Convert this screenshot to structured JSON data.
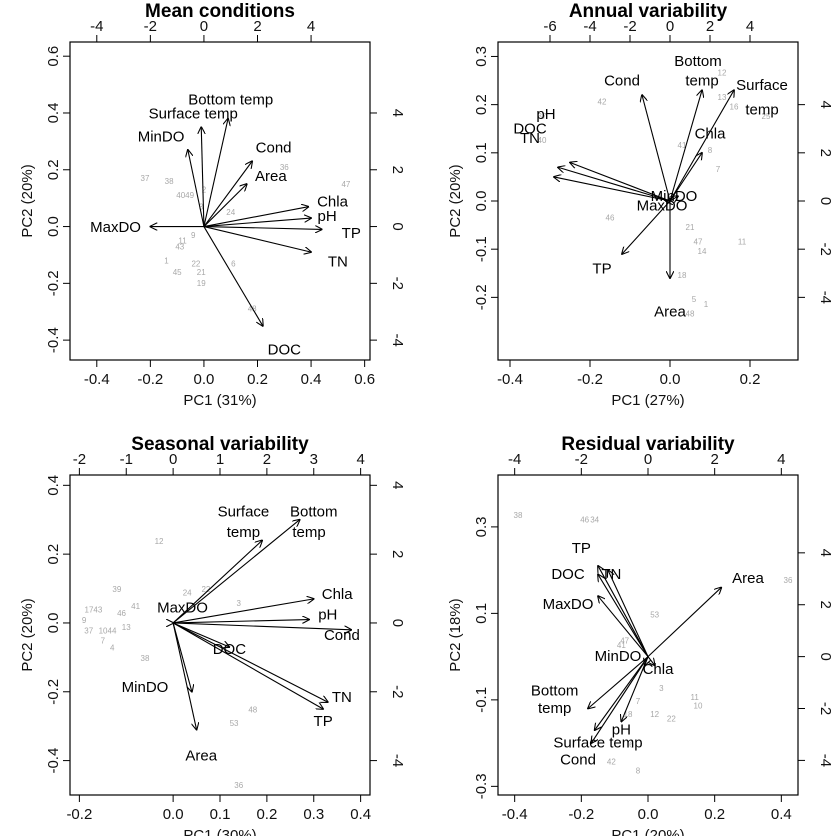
{
  "chart_data": [
    {
      "type": "biplot",
      "title": "Mean conditions",
      "xlabel": "PC1 (31%)",
      "ylabel": "PC2 (20%)",
      "xlim": [
        -0.5,
        0.62
      ],
      "ylim": [
        -0.47,
        0.65
      ],
      "xticks": [
        "-0.4",
        "-0.2",
        "0.0",
        "0.2",
        "0.4",
        "0.6"
      ],
      "xtick_values": [
        -0.4,
        -0.2,
        0.0,
        0.2,
        0.4,
        0.6
      ],
      "yticks": [
        "-0.4",
        "-0.2",
        "0.0",
        "0.2",
        "0.4",
        "0.6"
      ],
      "ytick_values": [
        -0.4,
        -0.2,
        0.0,
        0.2,
        0.4,
        0.6
      ],
      "top_ticks": [
        "-4",
        "-2",
        "0",
        "2",
        "4"
      ],
      "top_tick_values": [
        -0.4,
        -0.2,
        0.0,
        0.2,
        0.4
      ],
      "right_ticks": [
        "-4",
        "-2",
        "0",
        "2",
        "4"
      ],
      "right_tick_values": [
        -0.4,
        -0.2,
        0.0,
        0.2,
        0.4
      ],
      "vectors": [
        {
          "name": "Bottom temp",
          "x": 0.09,
          "y": 0.38,
          "lx": 0.1,
          "ly": 0.43
        },
        {
          "name": "Surface temp",
          "x": -0.01,
          "y": 0.35,
          "lx": -0.04,
          "ly": 0.38
        },
        {
          "name": "MinDO",
          "x": -0.06,
          "y": 0.27,
          "lx": -0.16,
          "ly": 0.3
        },
        {
          "name": "Cond",
          "x": 0.18,
          "y": 0.23,
          "lx": 0.26,
          "ly": 0.26
        },
        {
          "name": "Area",
          "x": 0.16,
          "y": 0.15,
          "lx": 0.25,
          "ly": 0.16
        },
        {
          "name": "Chla",
          "x": 0.39,
          "y": 0.07,
          "lx": 0.48,
          "ly": 0.07
        },
        {
          "name": "pH",
          "x": 0.4,
          "y": 0.03,
          "lx": 0.46,
          "ly": 0.02
        },
        {
          "name": "TP",
          "x": 0.44,
          "y": -0.01,
          "lx": 0.55,
          "ly": -0.04
        },
        {
          "name": "TN",
          "x": 0.4,
          "y": -0.09,
          "lx": 0.5,
          "ly": -0.14
        },
        {
          "name": "MaxDO",
          "x": -0.2,
          "y": 0.0,
          "lx": -0.33,
          "ly": -0.02
        },
        {
          "name": "DOC",
          "x": 0.22,
          "y": -0.35,
          "lx": 0.3,
          "ly": -0.45
        }
      ],
      "observations": [
        {
          "label": "37",
          "x": -0.22,
          "y": 0.16
        },
        {
          "label": "38",
          "x": -0.13,
          "y": 0.15
        },
        {
          "label": "4049",
          "x": -0.07,
          "y": 0.1
        },
        {
          "label": "2",
          "x": 0.0,
          "y": 0.12
        },
        {
          "label": "3",
          "x": -0.01,
          "y": 0.06
        },
        {
          "label": "36",
          "x": 0.3,
          "y": 0.2
        },
        {
          "label": "47",
          "x": 0.53,
          "y": 0.14
        },
        {
          "label": "24",
          "x": 0.1,
          "y": 0.04
        },
        {
          "label": "9",
          "x": -0.04,
          "y": -0.04
        },
        {
          "label": "11",
          "x": -0.08,
          "y": -0.06
        },
        {
          "label": "43",
          "x": -0.09,
          "y": -0.08
        },
        {
          "label": "1",
          "x": -0.14,
          "y": -0.13
        },
        {
          "label": "45",
          "x": -0.1,
          "y": -0.17
        },
        {
          "label": "22",
          "x": -0.03,
          "y": -0.14
        },
        {
          "label": "21",
          "x": -0.01,
          "y": -0.17
        },
        {
          "label": "19",
          "x": -0.01,
          "y": -0.21
        },
        {
          "label": "6",
          "x": 0.11,
          "y": -0.14
        },
        {
          "label": "48",
          "x": 0.18,
          "y": -0.3
        }
      ]
    },
    {
      "type": "biplot",
      "title": "Annual variability",
      "xlabel": "PC1 (27%)",
      "ylabel": "PC2 (20%)",
      "xlim": [
        -0.43,
        0.32
      ],
      "ylim": [
        -0.33,
        0.33
      ],
      "xticks": [
        "-0.4",
        "-0.2",
        "0.0",
        "0.2"
      ],
      "xtick_values": [
        -0.4,
        -0.2,
        0.0,
        0.2
      ],
      "yticks": [
        "-0.2",
        "-0.1",
        "0.0",
        "0.1",
        "0.2",
        "0.3"
      ],
      "ytick_values": [
        -0.2,
        -0.1,
        0.0,
        0.1,
        0.2,
        0.3
      ],
      "top_ticks": [
        "-6",
        "-4",
        "-2",
        "0",
        "2",
        "4"
      ],
      "top_tick_values": [
        -0.3,
        -0.2,
        -0.1,
        0.0,
        0.1,
        0.2
      ],
      "right_ticks": [
        "-4",
        "-2",
        "0",
        "2",
        "4"
      ],
      "right_tick_values": [
        -0.2,
        -0.1,
        0.0,
        0.1,
        0.2
      ],
      "vectors": [
        {
          "name": "Cond",
          "x": -0.07,
          "y": 0.22,
          "lx": -0.12,
          "ly": 0.24
        },
        {
          "name": "Bottom",
          "x": 0.08,
          "y": 0.23,
          "lx": 0.07,
          "ly": 0.28
        },
        {
          "name": "temp",
          "x": null,
          "y": null,
          "lx": 0.08,
          "ly": 0.24
        },
        {
          "name": "Surface",
          "x": 0.16,
          "y": 0.23,
          "lx": 0.23,
          "ly": 0.23
        },
        {
          "name": "temp",
          "x": null,
          "y": null,
          "lx": 0.23,
          "ly": 0.18
        },
        {
          "name": "Chla",
          "x": 0.08,
          "y": 0.1,
          "lx": 0.1,
          "ly": 0.13
        },
        {
          "name": "pH",
          "x": -0.25,
          "y": 0.08,
          "lx": -0.31,
          "ly": 0.17
        },
        {
          "name": "DOC",
          "x": -0.28,
          "y": 0.07,
          "lx": -0.35,
          "ly": 0.14
        },
        {
          "name": "TN",
          "x": -0.29,
          "y": 0.05,
          "lx": -0.35,
          "ly": 0.12
        },
        {
          "name": "MinDO",
          "x": 0.02,
          "y": 0.01,
          "lx": 0.01,
          "ly": 0.0
        },
        {
          "name": "MaxDO",
          "x": -0.01,
          "y": 0.0,
          "lx": -0.02,
          "ly": -0.02
        },
        {
          "name": "TP",
          "x": -0.12,
          "y": -0.11,
          "lx": -0.17,
          "ly": -0.15
        },
        {
          "name": "Area",
          "x": 0.0,
          "y": -0.16,
          "lx": 0.0,
          "ly": -0.24
        }
      ],
      "observations": [
        {
          "label": "37",
          "x": -0.32,
          "y": 0.17
        },
        {
          "label": "40",
          "x": -0.32,
          "y": 0.12
        },
        {
          "label": "42",
          "x": -0.17,
          "y": 0.2
        },
        {
          "label": "12",
          "x": 0.13,
          "y": 0.26
        },
        {
          "label": "13",
          "x": 0.13,
          "y": 0.21
        },
        {
          "label": "16",
          "x": 0.16,
          "y": 0.19
        },
        {
          "label": "25",
          "x": 0.24,
          "y": 0.17
        },
        {
          "label": "41",
          "x": 0.03,
          "y": 0.11
        },
        {
          "label": "8",
          "x": 0.1,
          "y": 0.1
        },
        {
          "label": "7",
          "x": 0.12,
          "y": 0.06
        },
        {
          "label": "46",
          "x": -0.15,
          "y": -0.04
        },
        {
          "label": "21",
          "x": 0.05,
          "y": -0.06
        },
        {
          "label": "47",
          "x": 0.07,
          "y": -0.09
        },
        {
          "label": "14",
          "x": 0.08,
          "y": -0.11
        },
        {
          "label": "11",
          "x": 0.18,
          "y": -0.09
        },
        {
          "label": "18",
          "x": 0.03,
          "y": -0.16
        },
        {
          "label": "5",
          "x": 0.06,
          "y": -0.21
        },
        {
          "label": "48",
          "x": 0.05,
          "y": -0.24
        },
        {
          "label": "1",
          "x": 0.09,
          "y": -0.22
        }
      ]
    },
    {
      "type": "biplot",
      "title": "Seasonal variability",
      "xlabel": "PC1 (30%)",
      "ylabel": "PC2 (20%)",
      "xlim": [
        -0.22,
        0.42
      ],
      "ylim": [
        -0.5,
        0.43
      ],
      "xticks": [
        "-0.2",
        "0.0",
        "0.1",
        "0.2",
        "0.3",
        "0.4"
      ],
      "xtick_values": [
        -0.2,
        0.0,
        0.1,
        0.2,
        0.3,
        0.4
      ],
      "yticks": [
        "-0.4",
        "-0.2",
        "0.0",
        "0.2",
        "0.4"
      ],
      "ytick_values": [
        -0.4,
        -0.2,
        0.0,
        0.2,
        0.4
      ],
      "top_ticks": [
        "-2",
        "-1",
        "0",
        "1",
        "2",
        "3",
        "4"
      ],
      "top_tick_values": [
        -0.2,
        -0.1,
        0.0,
        0.1,
        0.2,
        0.3,
        0.4
      ],
      "right_ticks": [
        "-4",
        "-2",
        "0",
        "2",
        "4"
      ],
      "right_tick_values": [
        -0.4,
        -0.2,
        0.0,
        0.2,
        0.4
      ],
      "vectors": [
        {
          "name": "Surface",
          "x": 0.19,
          "y": 0.24,
          "lx": 0.15,
          "ly": 0.31
        },
        {
          "name": "temp",
          "x": null,
          "y": null,
          "lx": 0.15,
          "ly": 0.25
        },
        {
          "name": "Bottom",
          "x": 0.27,
          "y": 0.3,
          "lx": 0.3,
          "ly": 0.31
        },
        {
          "name": "temp",
          "x": null,
          "y": null,
          "lx": 0.29,
          "ly": 0.25
        },
        {
          "name": "Chla",
          "x": 0.3,
          "y": 0.07,
          "lx": 0.35,
          "ly": 0.07
        },
        {
          "name": "pH",
          "x": 0.29,
          "y": 0.01,
          "lx": 0.33,
          "ly": 0.01
        },
        {
          "name": "Cond",
          "x": 0.38,
          "y": -0.02,
          "lx": 0.36,
          "ly": -0.05
        },
        {
          "name": "MaxDO",
          "x": 0.0,
          "y": 0.0,
          "lx": 0.02,
          "ly": 0.03
        },
        {
          "name": "DOC",
          "x": 0.12,
          "y": -0.07,
          "lx": 0.12,
          "ly": -0.09
        },
        {
          "name": "TN",
          "x": 0.33,
          "y": -0.23,
          "lx": 0.36,
          "ly": -0.23
        },
        {
          "name": "TP",
          "x": 0.32,
          "y": -0.25,
          "lx": 0.32,
          "ly": -0.3
        },
        {
          "name": "MinDO",
          "x": 0.04,
          "y": -0.2,
          "lx": -0.06,
          "ly": -0.2
        },
        {
          "name": "Area",
          "x": 0.05,
          "y": -0.31,
          "lx": 0.06,
          "ly": -0.4
        }
      ],
      "observations": [
        {
          "label": "12",
          "x": -0.03,
          "y": 0.23
        },
        {
          "label": "39",
          "x": -0.12,
          "y": 0.09
        },
        {
          "label": "24",
          "x": 0.03,
          "y": 0.08
        },
        {
          "label": "22",
          "x": 0.07,
          "y": 0.09
        },
        {
          "label": "3",
          "x": 0.14,
          "y": 0.05
        },
        {
          "label": "1743",
          "x": -0.17,
          "y": 0.03
        },
        {
          "label": "46",
          "x": -0.11,
          "y": 0.02
        },
        {
          "label": "41",
          "x": -0.08,
          "y": 0.04
        },
        {
          "label": "9",
          "x": -0.19,
          "y": 0.0
        },
        {
          "label": "37",
          "x": -0.18,
          "y": -0.03
        },
        {
          "label": "1044",
          "x": -0.14,
          "y": -0.03
        },
        {
          "label": "13",
          "x": -0.1,
          "y": -0.02
        },
        {
          "label": "7",
          "x": -0.15,
          "y": -0.06
        },
        {
          "label": "4",
          "x": -0.13,
          "y": -0.08
        },
        {
          "label": "38",
          "x": -0.06,
          "y": -0.11
        },
        {
          "label": "48",
          "x": 0.17,
          "y": -0.26
        },
        {
          "label": "53",
          "x": 0.13,
          "y": -0.3
        },
        {
          "label": "36",
          "x": 0.14,
          "y": -0.48
        }
      ]
    },
    {
      "type": "biplot",
      "title": "Residual variability",
      "xlabel": "PC1 (20%)",
      "ylabel": "PC2 (18%)",
      "xlim": [
        -0.45,
        0.45
      ],
      "ylim": [
        -0.32,
        0.42
      ],
      "xticks": [
        "-0.4",
        "-0.2",
        "0.0",
        "0.2",
        "0.4"
      ],
      "xtick_values": [
        -0.4,
        -0.2,
        0.0,
        0.2,
        0.4
      ],
      "yticks": [
        "-0.3",
        "-0.1",
        "0.1",
        "0.3"
      ],
      "ytick_values": [
        -0.3,
        -0.1,
        0.1,
        0.3
      ],
      "top_ticks": [
        "-4",
        "-2",
        "0",
        "2",
        "4"
      ],
      "top_tick_values": [
        -0.4,
        -0.2,
        0.0,
        0.2,
        0.4
      ],
      "right_ticks": [
        "-4",
        "-2",
        "0",
        "2",
        "4"
      ],
      "right_tick_values": [
        -0.24,
        -0.12,
        0.0,
        0.12,
        0.24
      ],
      "vectors": [
        {
          "name": "TP",
          "x": -0.15,
          "y": 0.21,
          "lx": -0.2,
          "ly": 0.24
        },
        {
          "name": "DOC",
          "x": -0.15,
          "y": 0.19,
          "lx": -0.24,
          "ly": 0.18
        },
        {
          "name": "TN",
          "x": -0.12,
          "y": 0.2,
          "lx": -0.11,
          "ly": 0.18
        },
        {
          "name": "MaxDO",
          "x": -0.15,
          "y": 0.14,
          "lx": -0.24,
          "ly": 0.11
        },
        {
          "name": "Area",
          "x": 0.22,
          "y": 0.16,
          "lx": 0.3,
          "ly": 0.17
        },
        {
          "name": "MinDO",
          "x": -0.01,
          "y": -0.02,
          "lx": -0.09,
          "ly": -0.01
        },
        {
          "name": "Chla",
          "x": 0.02,
          "y": -0.02,
          "lx": 0.03,
          "ly": -0.04
        },
        {
          "name": "Bottom",
          "x": -0.18,
          "y": -0.12,
          "lx": -0.28,
          "ly": -0.09
        },
        {
          "name": "temp",
          "x": null,
          "y": null,
          "lx": -0.28,
          "ly": -0.13
        },
        {
          "name": "Surface temp",
          "x": -0.16,
          "y": -0.17,
          "lx": -0.15,
          "ly": -0.21
        },
        {
          "name": "Cond",
          "x": -0.17,
          "y": -0.2,
          "lx": -0.21,
          "ly": -0.25
        },
        {
          "name": "pH",
          "x": -0.08,
          "y": -0.15,
          "lx": -0.08,
          "ly": -0.18
        }
      ],
      "observations": [
        {
          "label": "38",
          "x": -0.39,
          "y": 0.32
        },
        {
          "label": "46",
          "x": -0.19,
          "y": 0.31
        },
        {
          "label": "34",
          "x": -0.16,
          "y": 0.31
        },
        {
          "label": "53",
          "x": 0.02,
          "y": 0.09
        },
        {
          "label": "47",
          "x": -0.07,
          "y": 0.03
        },
        {
          "label": "41",
          "x": -0.08,
          "y": 0.02
        },
        {
          "label": "36",
          "x": 0.42,
          "y": 0.17
        },
        {
          "label": "3",
          "x": 0.04,
          "y": -0.08
        },
        {
          "label": "7",
          "x": -0.03,
          "y": -0.11
        },
        {
          "label": "18",
          "x": -0.06,
          "y": -0.14
        },
        {
          "label": "12",
          "x": 0.02,
          "y": -0.14
        },
        {
          "label": "22",
          "x": 0.07,
          "y": -0.15
        },
        {
          "label": "11",
          "x": 0.14,
          "y": -0.1
        },
        {
          "label": "10",
          "x": 0.15,
          "y": -0.12
        },
        {
          "label": "6",
          "x": -0.05,
          "y": -0.21
        },
        {
          "label": "42",
          "x": -0.11,
          "y": -0.25
        },
        {
          "label": "8",
          "x": -0.03,
          "y": -0.27
        }
      ]
    }
  ]
}
